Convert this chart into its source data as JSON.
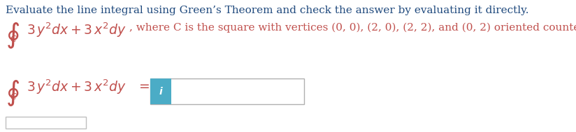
{
  "background_color": "#ffffff",
  "line1_text": "Evaluate the line integral using Green’s Theorem and check the answer by evaluating it directly.",
  "line1_color": "#1f497d",
  "line2_color": "#c0504d",
  "info_button_color": "#4bacc6",
  "line1_fontsize": 11.0,
  "line2_fontsize": 13.5,
  "eq_fontsize": 13.5,
  "suffix_text": ", where C is the square with vertices (0, 0), (2, 0), (2, 2), and (0, 2) oriented counterclockwise.",
  "suffix_fontsize": 11.0,
  "input_box_color": "#ffffff",
  "input_box_edge": "#b0b0b0",
  "bottom_box_edge": "#c0c0c0"
}
